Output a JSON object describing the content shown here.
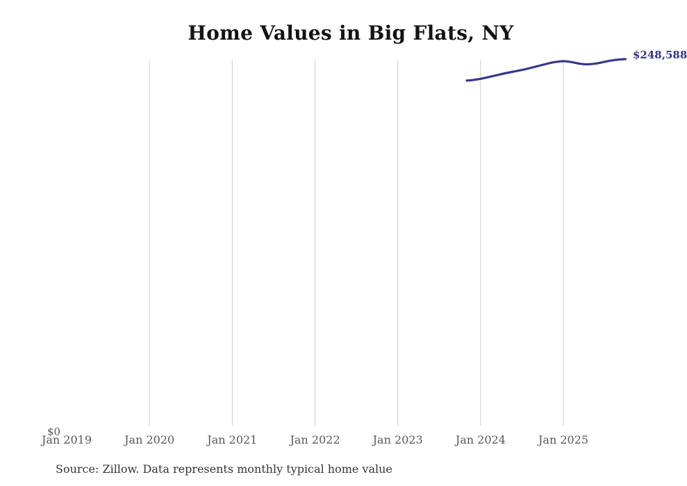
{
  "title": {
    "text": "Home Values in Big Flats, NY"
  },
  "source_note": {
    "text": "Source: Zillow. Data represents monthly typical home value"
  },
  "y_axis": {
    "zero_label": "$0"
  },
  "end_label": {
    "text": "$248,588"
  },
  "colors": {
    "line": "#36368e",
    "grid": "#cccccc",
    "title": "#131313",
    "tick_text": "#595959",
    "end_label_text": "#33338a"
  },
  "chart_data": {
    "type": "line",
    "title": "Home Values in Big Flats, NY",
    "xlabel": "",
    "ylabel": "",
    "grid": "vertical-only",
    "legend": "none",
    "x_tick_labels": [
      "Jan 2019",
      "Jan 2020",
      "Jan 2021",
      "Jan 2022",
      "Jan 2023",
      "Jan 2024",
      "Jan 2025"
    ],
    "y_tick_labels": [
      "$0"
    ],
    "y_min": 0,
    "x_range": [
      "2019-01",
      "2025-10"
    ],
    "x": [
      "2023-11",
      "2023-12",
      "2024-01",
      "2024-02",
      "2024-03",
      "2024-04",
      "2024-05",
      "2024-06",
      "2024-07",
      "2024-08",
      "2024-09",
      "2024-10",
      "2024-11",
      "2024-12",
      "2025-01",
      "2025-02",
      "2025-03",
      "2025-04",
      "2025-05",
      "2025-06",
      "2025-07",
      "2025-08",
      "2025-09",
      "2025-10"
    ],
    "series": [
      {
        "name": "Monthly typical home value",
        "values": [
          234000,
          234400,
          235200,
          236200,
          237300,
          238400,
          239400,
          240300,
          241200,
          242300,
          243500,
          244700,
          245900,
          246800,
          247300,
          246800,
          245800,
          245000,
          245100,
          245800,
          246800,
          247700,
          248300,
          248588
        ]
      }
    ],
    "end_point_label": "$248,588"
  }
}
